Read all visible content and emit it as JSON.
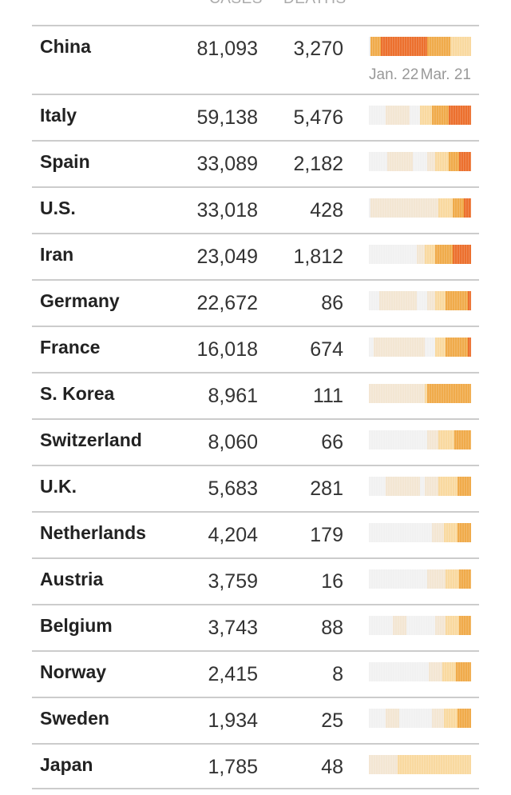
{
  "header": {
    "cases_label": "CASES",
    "deaths_label": "DEATHS"
  },
  "colors": {
    "0": "#f1f1f1",
    "1": "#f3e6d3",
    "2": "#f9d9a0",
    "3": "#f0ab4b",
    "4": "#ec702e"
  },
  "legend_levels": [
    1,
    2,
    3,
    4
  ],
  "date_range": {
    "start": "Jan. 22",
    "end": "Mar. 21"
  },
  "rows": [
    {
      "name": "China",
      "cases": "81,093",
      "deaths": "3,270",
      "strip": [
        [
          0,
          1
        ],
        [
          3,
          6
        ],
        [
          4,
          27
        ],
        [
          3,
          14
        ],
        [
          2,
          12
        ]
      ]
    },
    {
      "name": "Italy",
      "cases": "59,138",
      "deaths": "5,476",
      "strip": [
        [
          0,
          10
        ],
        [
          1,
          14
        ],
        [
          0,
          6
        ],
        [
          2,
          7
        ],
        [
          3,
          10
        ],
        [
          4,
          13
        ]
      ]
    },
    {
      "name": "Spain",
      "cases": "33,089",
      "deaths": "2,182",
      "strip": [
        [
          0,
          11
        ],
        [
          1,
          15
        ],
        [
          0,
          8
        ],
        [
          1,
          5
        ],
        [
          2,
          8
        ],
        [
          3,
          6
        ],
        [
          4,
          7
        ]
      ]
    },
    {
      "name": "U.S.",
      "cases": "33,018",
      "deaths": "428",
      "strip": [
        [
          0,
          1
        ],
        [
          1,
          40
        ],
        [
          2,
          8
        ],
        [
          3,
          7
        ],
        [
          4,
          4
        ]
      ]
    },
    {
      "name": "Iran",
      "cases": "23,049",
      "deaths": "1,812",
      "strip": [
        [
          0,
          28
        ],
        [
          1,
          5
        ],
        [
          2,
          6
        ],
        [
          3,
          10
        ],
        [
          4,
          11
        ]
      ]
    },
    {
      "name": "Germany",
      "cases": "22,672",
      "deaths": "86",
      "strip": [
        [
          0,
          6
        ],
        [
          1,
          22
        ],
        [
          0,
          6
        ],
        [
          1,
          5
        ],
        [
          2,
          6
        ],
        [
          3,
          13
        ],
        [
          4,
          2
        ]
      ]
    },
    {
      "name": "France",
      "cases": "16,018",
      "deaths": "674",
      "strip": [
        [
          0,
          3
        ],
        [
          1,
          30
        ],
        [
          0,
          6
        ],
        [
          2,
          6
        ],
        [
          3,
          13
        ],
        [
          4,
          2
        ]
      ]
    },
    {
      "name": "S. Korea",
      "cases": "8,961",
      "deaths": "111",
      "strip": [
        [
          1,
          33
        ],
        [
          2,
          1
        ],
        [
          3,
          26
        ]
      ]
    },
    {
      "name": "Switzerland",
      "cases": "8,060",
      "deaths": "66",
      "strip": [
        [
          0,
          34
        ],
        [
          1,
          7
        ],
        [
          2,
          9
        ],
        [
          3,
          10
        ]
      ]
    },
    {
      "name": "U.K.",
      "cases": "5,683",
      "deaths": "281",
      "strip": [
        [
          0,
          10
        ],
        [
          1,
          20
        ],
        [
          0,
          3
        ],
        [
          1,
          8
        ],
        [
          2,
          11
        ],
        [
          3,
          8
        ]
      ]
    },
    {
      "name": "Netherlands",
      "cases": "4,204",
      "deaths": "179",
      "strip": [
        [
          0,
          37
        ],
        [
          1,
          7
        ],
        [
          2,
          8
        ],
        [
          3,
          8
        ]
      ]
    },
    {
      "name": "Austria",
      "cases": "3,759",
      "deaths": "16",
      "strip": [
        [
          0,
          34
        ],
        [
          1,
          11
        ],
        [
          2,
          8
        ],
        [
          3,
          7
        ]
      ]
    },
    {
      "name": "Belgium",
      "cases": "3,743",
      "deaths": "88",
      "strip": [
        [
          0,
          14
        ],
        [
          1,
          8
        ],
        [
          0,
          17
        ],
        [
          1,
          6
        ],
        [
          2,
          8
        ],
        [
          3,
          7
        ]
      ]
    },
    {
      "name": "Norway",
      "cases": "2,415",
      "deaths": "8",
      "strip": [
        [
          0,
          35
        ],
        [
          1,
          8
        ],
        [
          2,
          8
        ],
        [
          3,
          9
        ]
      ]
    },
    {
      "name": "Sweden",
      "cases": "1,934",
      "deaths": "25",
      "strip": [
        [
          0,
          10
        ],
        [
          1,
          8
        ],
        [
          0,
          19
        ],
        [
          1,
          7
        ],
        [
          2,
          8
        ],
        [
          3,
          8
        ]
      ]
    },
    {
      "name": "Japan",
      "cases": "1,785",
      "deaths": "48",
      "strip": [
        [
          1,
          17
        ],
        [
          2,
          43
        ]
      ]
    }
  ]
}
